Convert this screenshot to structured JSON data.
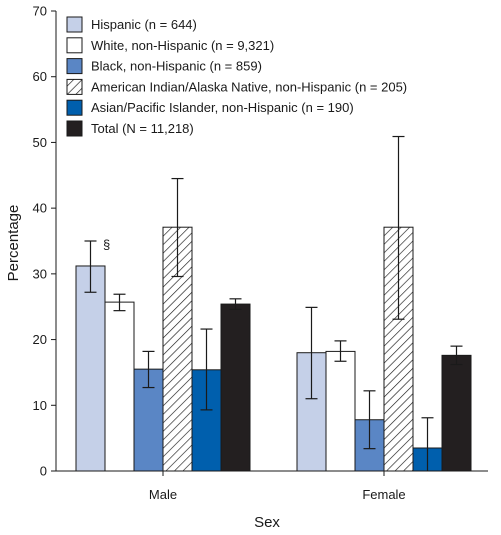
{
  "chart_data": {
    "type": "bar",
    "xlabel": "Sex",
    "ylabel": "Percentage",
    "ylim": [
      0,
      70
    ],
    "yticks": [
      0,
      10,
      20,
      30,
      40,
      50,
      60,
      70
    ],
    "grid": false,
    "legend_position": "top-left",
    "categories": [
      "Male",
      "Female"
    ],
    "series": [
      {
        "name": "Hispanic (n = 644)",
        "fill": "#c5d0e8",
        "pattern": "solid",
        "values": [
          31.2,
          18.0
        ],
        "ci_lower": [
          27.2,
          11.0
        ],
        "ci_upper": [
          35.0,
          24.9
        ]
      },
      {
        "name": "White, non-Hispanic (n = 9,321)",
        "fill": "#ffffff",
        "pattern": "solid",
        "values": [
          25.7,
          18.2
        ],
        "ci_lower": [
          24.4,
          16.7
        ],
        "ci_upper": [
          26.9,
          19.8
        ]
      },
      {
        "name": "Black, non-Hispanic (n = 859)",
        "fill": "#5a86c5",
        "pattern": "solid",
        "values": [
          15.5,
          7.8
        ],
        "ci_lower": [
          12.7,
          3.4
        ],
        "ci_upper": [
          18.2,
          12.2
        ]
      },
      {
        "name": "American Indian/Alaska Native, non-Hispanic (n = 205)",
        "fill": "#ffffff",
        "pattern": "hatch",
        "values": [
          37.1,
          37.1
        ],
        "ci_lower": [
          29.6,
          23.1
        ],
        "ci_upper": [
          44.5,
          50.9
        ]
      },
      {
        "name": "Asian/Pacific Islander, non-Hispanic (n = 190)",
        "fill": "#005fad",
        "pattern": "solid",
        "values": [
          15.4,
          3.5
        ],
        "ci_lower": [
          9.3,
          0
        ],
        "ci_upper": [
          21.6,
          8.1
        ]
      },
      {
        "name": "Total (N = 11,218)",
        "fill": "#231f20",
        "pattern": "solid",
        "values": [
          25.4,
          17.6
        ],
        "ci_lower": [
          24.6,
          16.2
        ],
        "ci_upper": [
          26.2,
          19.0
        ]
      }
    ],
    "annotations": [
      {
        "text": "§",
        "series": 0,
        "category": 0
      }
    ]
  }
}
